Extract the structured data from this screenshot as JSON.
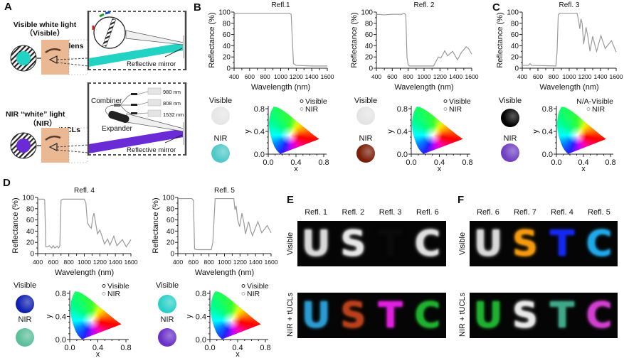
{
  "panels": {
    "A": {
      "label": "A",
      "visible_title": "Visible white light",
      "visible_sub": "（Visible）",
      "blank_lens": "Blank lens",
      "reflective_mirror": "Reflective mirror",
      "nir_title": "NIR “white” light",
      "nir_sub": "（NIR）",
      "tucls": "tUCLs",
      "combiner": "Combiner",
      "expander": "Expander",
      "lasers": [
        "980 nm",
        "808 nm",
        "1532 nm"
      ],
      "colors": {
        "visible_beam": "#22d3c3",
        "nir_beam": "#6a2bd6",
        "skin": "#eab994"
      }
    },
    "B": {
      "label": "B"
    },
    "C": {
      "label": "C"
    },
    "D": {
      "label": "D"
    },
    "E": {
      "label": "E",
      "columns": [
        "Refl. 1",
        "Refl. 2",
        "Refl. 3",
        "Refl. 6"
      ],
      "rows": [
        "Visible",
        "NIR + tUCLs"
      ],
      "letters": [
        "U",
        "S",
        "T",
        "C"
      ],
      "visible_colors": [
        "#d8d8d8",
        "#e6e6e6",
        "#0a0a0a",
        "#e0e0e0"
      ],
      "nir_colors": [
        "#2a9ad0",
        "#b8401c",
        "#e020e0",
        "#20b030"
      ]
    },
    "F": {
      "label": "F",
      "columns": [
        "Refl. 6",
        "Refl. 7",
        "Refl. 4",
        "Refl. 5"
      ],
      "rows": [
        "Visible",
        "NIR + tUCLs"
      ],
      "letters": [
        "U",
        "S",
        "T",
        "C"
      ],
      "visible_colors": [
        "#d8d8d8",
        "#f59a10",
        "#1428f0",
        "#20a8e8"
      ],
      "nir_colors": [
        "#20b030",
        "#e8e8e8",
        "#40a888",
        "#d040d0"
      ]
    }
  },
  "swatch_labels": {
    "visible": "Visible",
    "nir": "NIR"
  },
  "chart_data": [
    {
      "id": "R1",
      "type": "line",
      "title": "Refl.1",
      "xlabel": "Wavelength (nm)",
      "ylabel": "Reflectance (%)",
      "xlim": [
        400,
        1600
      ],
      "ylim": [
        0,
        100
      ],
      "xticks": [
        400,
        600,
        800,
        1000,
        1200,
        1400,
        1600
      ],
      "yticks": [
        0,
        20,
        40,
        60,
        80,
        100
      ],
      "points": [
        [
          400,
          96
        ],
        [
          420,
          98
        ],
        [
          700,
          98
        ],
        [
          1000,
          98
        ],
        [
          1110,
          98
        ],
        [
          1135,
          96
        ],
        [
          1150,
          50
        ],
        [
          1165,
          8
        ],
        [
          1200,
          5
        ],
        [
          1400,
          4
        ],
        [
          1600,
          4
        ]
      ]
    },
    {
      "id": "R2",
      "type": "line",
      "title": "Refl. 2",
      "xlabel": "Wavelength (nm)",
      "ylabel": "Reflectance (%)",
      "xlim": [
        400,
        1600
      ],
      "ylim": [
        0,
        100
      ],
      "xticks": [
        400,
        600,
        800,
        1000,
        1200,
        1400,
        1600
      ],
      "yticks": [
        0,
        20,
        40,
        60,
        80,
        100
      ],
      "points": [
        [
          400,
          96
        ],
        [
          500,
          95
        ],
        [
          600,
          96
        ],
        [
          720,
          96
        ],
        [
          750,
          98
        ],
        [
          770,
          95
        ],
        [
          785,
          20
        ],
        [
          800,
          6
        ],
        [
          820,
          4
        ],
        [
          1120,
          4
        ],
        [
          1150,
          12
        ],
        [
          1180,
          20
        ],
        [
          1210,
          18
        ],
        [
          1235,
          24
        ],
        [
          1260,
          31
        ],
        [
          1295,
          22
        ],
        [
          1360,
          30
        ],
        [
          1420,
          15
        ],
        [
          1470,
          28
        ],
        [
          1530,
          38
        ],
        [
          1560,
          35
        ],
        [
          1600,
          25
        ]
      ]
    },
    {
      "id": "R3",
      "type": "line",
      "title": "Refl. 3",
      "xlabel": "Wavelength (nm)",
      "ylabel": "Reflectance (%)",
      "xlim": [
        400,
        1600
      ],
      "ylim": [
        0,
        100
      ],
      "xticks": [
        400,
        600,
        800,
        1000,
        1200,
        1400,
        1600
      ],
      "yticks": [
        0,
        20,
        40,
        60,
        80,
        100
      ],
      "points": [
        [
          400,
          5
        ],
        [
          480,
          5
        ],
        [
          500,
          8
        ],
        [
          520,
          5
        ],
        [
          830,
          4
        ],
        [
          845,
          30
        ],
        [
          860,
          95
        ],
        [
          880,
          98
        ],
        [
          1100,
          98
        ],
        [
          1120,
          85
        ],
        [
          1135,
          70
        ],
        [
          1150,
          88
        ],
        [
          1165,
          80
        ],
        [
          1185,
          43
        ],
        [
          1215,
          73
        ],
        [
          1240,
          55
        ],
        [
          1265,
          30
        ],
        [
          1300,
          57
        ],
        [
          1330,
          40
        ],
        [
          1350,
          30
        ],
        [
          1405,
          58
        ],
        [
          1460,
          35
        ],
        [
          1540,
          49
        ],
        [
          1600,
          29
        ]
      ]
    },
    {
      "id": "R4",
      "type": "line",
      "title": "Refl. 4",
      "xlabel": "Wavelength (nm)",
      "ylabel": "Reflectance (%)",
      "xlim": [
        400,
        1600
      ],
      "ylim": [
        0,
        100
      ],
      "xticks": [
        400,
        600,
        800,
        1000,
        1200,
        1400,
        1600
      ],
      "yticks": [
        0,
        20,
        40,
        60,
        80,
        100
      ],
      "points": [
        [
          400,
          97
        ],
        [
          480,
          97
        ],
        [
          490,
          95
        ],
        [
          505,
          12
        ],
        [
          530,
          12
        ],
        [
          550,
          14
        ],
        [
          580,
          10
        ],
        [
          600,
          14
        ],
        [
          620,
          10
        ],
        [
          650,
          13
        ],
        [
          670,
          10
        ],
        [
          685,
          14
        ],
        [
          700,
          95
        ],
        [
          720,
          97
        ],
        [
          1000,
          97
        ],
        [
          1020,
          90
        ],
        [
          1040,
          55
        ],
        [
          1070,
          48
        ],
        [
          1090,
          45
        ],
        [
          1110,
          65
        ],
        [
          1125,
          72
        ],
        [
          1145,
          55
        ],
        [
          1170,
          35
        ],
        [
          1200,
          42
        ],
        [
          1230,
          30
        ],
        [
          1260,
          17
        ],
        [
          1300,
          26
        ],
        [
          1330,
          15
        ],
        [
          1380,
          31
        ],
        [
          1420,
          14
        ],
        [
          1490,
          25
        ],
        [
          1540,
          12
        ],
        [
          1600,
          25
        ]
      ]
    },
    {
      "id": "R5",
      "type": "line",
      "title": "Refl. 5",
      "xlabel": "Wavelength (nm)",
      "ylabel": "Reflectance (%)",
      "xlim": [
        400,
        1600
      ],
      "ylim": [
        0,
        100
      ],
      "xticks": [
        400,
        600,
        800,
        1000,
        1200,
        1400,
        1600
      ],
      "yticks": [
        0,
        20,
        40,
        60,
        80,
        100
      ],
      "points": [
        [
          400,
          98
        ],
        [
          580,
          98
        ],
        [
          600,
          95
        ],
        [
          615,
          8
        ],
        [
          650,
          7
        ],
        [
          830,
          7
        ],
        [
          850,
          20
        ],
        [
          880,
          98
        ],
        [
          1120,
          98
        ],
        [
          1135,
          78
        ],
        [
          1150,
          85
        ],
        [
          1170,
          60
        ],
        [
          1195,
          48
        ],
        [
          1225,
          72
        ],
        [
          1250,
          55
        ],
        [
          1270,
          35
        ],
        [
          1310,
          57
        ],
        [
          1340,
          40
        ],
        [
          1360,
          32
        ],
        [
          1430,
          57
        ],
        [
          1480,
          37
        ],
        [
          1550,
          50
        ],
        [
          1600,
          37
        ]
      ]
    },
    {
      "id": "CIE1",
      "type": "scatter",
      "xlabel": "x",
      "ylabel": "y",
      "xlim": [
        0,
        0.8
      ],
      "ylim": [
        0,
        0.8
      ],
      "xticks": [
        0.0,
        0.4,
        0.8
      ],
      "yticks": [
        0.0,
        0.4,
        0.8
      ],
      "legend": [
        "Visible",
        "NIR"
      ],
      "swatches": {
        "visible": "#e6e6e6",
        "nir": "#4fc8c8"
      },
      "series": [
        {
          "name": "Visible",
          "x": 0.31,
          "y": 0.33
        },
        {
          "name": "NIR",
          "x": 0.27,
          "y": 0.33
        }
      ]
    },
    {
      "id": "CIE2",
      "type": "scatter",
      "xlabel": "x",
      "ylabel": "y",
      "xlim": [
        0,
        0.8
      ],
      "ylim": [
        0,
        0.8
      ],
      "xticks": [
        0.0,
        0.4,
        0.8
      ],
      "yticks": [
        0.0,
        0.4,
        0.8
      ],
      "legend": [
        "Visible",
        "NIR"
      ],
      "swatches": {
        "visible": "#e4e4e4",
        "nir": "#7a1e08"
      },
      "series": [
        {
          "name": "Visible",
          "x": 0.32,
          "y": 0.33
        },
        {
          "name": "NIR",
          "x": 0.36,
          "y": 0.31
        }
      ]
    },
    {
      "id": "CIE3",
      "type": "scatter",
      "xlabel": "x",
      "ylabel": "y",
      "xlim": [
        0,
        0.8
      ],
      "ylim": [
        0,
        0.8
      ],
      "xticks": [
        0.0,
        0.4,
        0.8
      ],
      "yticks": [
        0.0,
        0.4,
        0.8
      ],
      "legend": [
        "N/A-Visible",
        "NIR"
      ],
      "swatches": {
        "visible": "#000000",
        "nir": "#7040c0"
      },
      "series": [
        {
          "name": "NIR",
          "x": 0.25,
          "y": 0.12
        }
      ]
    },
    {
      "id": "CIE4",
      "type": "scatter",
      "xlabel": "x",
      "ylabel": "y",
      "xlim": [
        0,
        0.8
      ],
      "ylim": [
        0,
        0.8
      ],
      "xticks": [
        0.0,
        0.4,
        0.8
      ],
      "yticks": [
        0.0,
        0.4,
        0.8
      ],
      "legend": [
        "Visible",
        "NIR"
      ],
      "swatches": {
        "visible": "#1020b0",
        "nir": "#5abf9a"
      },
      "series": [
        {
          "name": "Visible",
          "x": 0.2,
          "y": 0.12
        },
        {
          "name": "NIR",
          "x": 0.27,
          "y": 0.38
        }
      ]
    },
    {
      "id": "CIE5",
      "type": "scatter",
      "xlabel": "x",
      "ylabel": "y",
      "xlim": [
        0,
        0.8
      ],
      "ylim": [
        0,
        0.8
      ],
      "xticks": [
        0.0,
        0.4,
        0.8
      ],
      "yticks": [
        0.0,
        0.4,
        0.8
      ],
      "legend": [
        "Visible",
        "NIR"
      ],
      "swatches": {
        "visible": "#2ad0c8",
        "nir": "#6a30c8"
      },
      "series": [
        {
          "name": "Visible",
          "x": 0.24,
          "y": 0.32
        },
        {
          "name": "NIR",
          "x": 0.23,
          "y": 0.16
        }
      ]
    }
  ]
}
